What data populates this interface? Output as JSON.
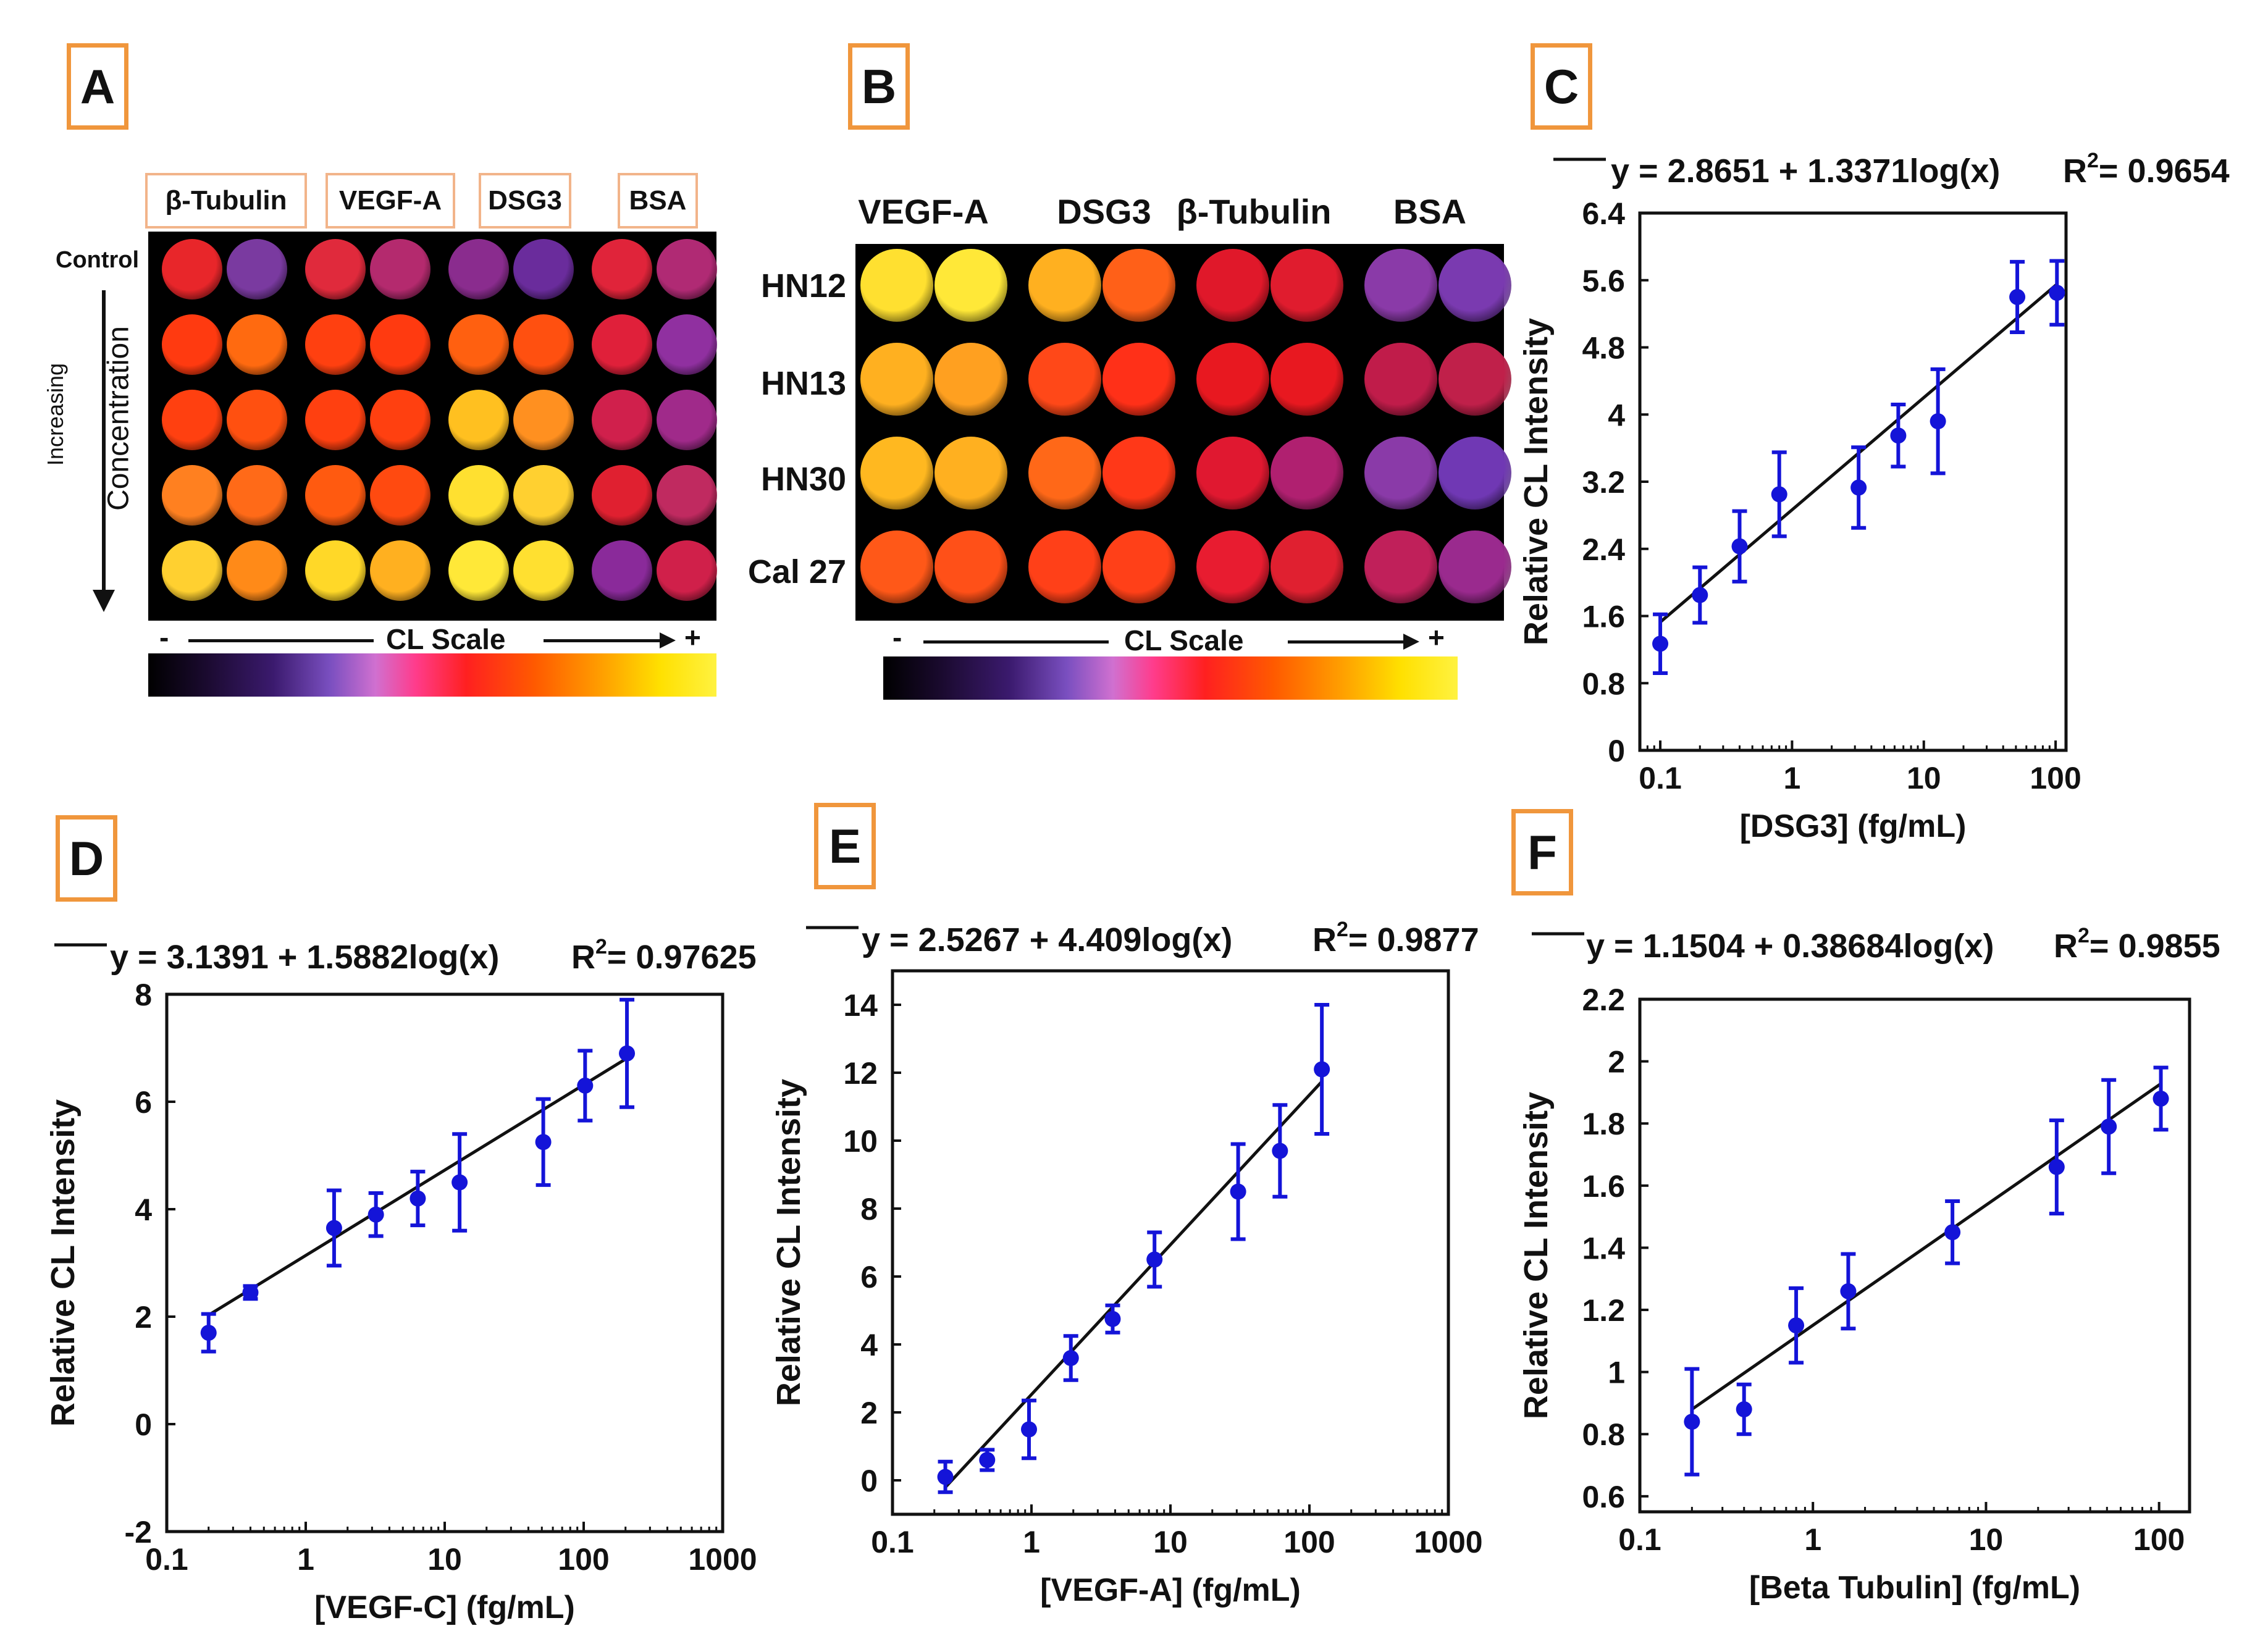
{
  "panel_labels": {
    "A": "A",
    "B": "B",
    "C": "C",
    "D": "D",
    "E": "E",
    "F": "F"
  },
  "panelA": {
    "columns": [
      "β-Tubulin",
      "VEGF-A",
      "DSG3",
      "BSA"
    ],
    "row_labels": {
      "control": "Control",
      "increasing": "Increasing",
      "concentration": "Concentration"
    },
    "scale": {
      "minus": "-",
      "label": "CL Scale",
      "plus": "+"
    },
    "wells": [
      [
        "#e8262a",
        "#7a3aa0",
        "#e02a3c",
        "#b42a6e",
        "#8a2c8e",
        "#6a2c9c",
        "#e0243a",
        "#b02a74"
      ],
      [
        "#ff3a10",
        "#ff6a10",
        "#ff4010",
        "#ff3a10",
        "#ff6010",
        "#ff5010",
        "#e0203a",
        "#9030a0"
      ],
      [
        "#ff4010",
        "#ff5010",
        "#ff4010",
        "#ff4010",
        "#ffc020",
        "#ff9020",
        "#d0204c",
        "#a02a8a"
      ],
      [
        "#ff8020",
        "#ff6a18",
        "#ff5a10",
        "#ff4a10",
        "#ffe030",
        "#ffd030",
        "#e02030",
        "#c02a60"
      ],
      [
        "#ffd030",
        "#ff8a18",
        "#ffd828",
        "#ffb020",
        "#ffe838",
        "#ffe030",
        "#8a2a9a",
        "#d0204a"
      ]
    ]
  },
  "panelB": {
    "columns": [
      "VEGF-A",
      "DSG3",
      "β-Tubulin",
      "BSA"
    ],
    "rows": [
      "HN12",
      "HN13",
      "HN30",
      "Cal 27"
    ],
    "scale": {
      "minus": "-",
      "label": "CL Scale",
      "plus": "+"
    },
    "wells": [
      [
        "#ffe030",
        "#ffe838",
        "#ffb020",
        "#ff6018",
        "#e0182a",
        "#e01c2e",
        "#8a3aa8",
        "#7a3ab0"
      ],
      [
        "#ffb020",
        "#ffa020",
        "#ff4818",
        "#ff3018",
        "#e81820",
        "#e81820",
        "#c01c4a",
        "#c0204a"
      ],
      [
        "#ffb820",
        "#ffb020",
        "#ff6818",
        "#ff3818",
        "#e01830",
        "#b02070",
        "#8a3aa8",
        "#7038b4"
      ],
      [
        "#ff5818",
        "#ff5018",
        "#ff4018",
        "#ff4018",
        "#e81c30",
        "#e02030",
        "#c0205a",
        "#9a2a8e"
      ]
    ]
  },
  "chart_data": [
    {
      "id": "C",
      "type": "scatter",
      "xscale": "log",
      "xlim": [
        0.07,
        120
      ],
      "ylim": [
        0,
        6.4
      ],
      "xticks": [
        0.1,
        1,
        10,
        100
      ],
      "xtick_labels": [
        "0.1",
        "1",
        "10",
        "100"
      ],
      "yticks": [
        0,
        0.8,
        1.6,
        2.4,
        3.2,
        4,
        4.8,
        5.6,
        6.4
      ],
      "ytick_labels": [
        "0",
        "0.8",
        "1.6",
        "2.4",
        "3.2",
        "4",
        "4.8",
        "5.6",
        "6.4"
      ],
      "xlabel": "[DSG3] (fg/mL)",
      "ylabel": "Relative CL Intensity",
      "equation": "y = 2.8651 + 1.3371log(x)",
      "r2_label": "R",
      "r2_sup": "2",
      "r2_value": "= 0.9654",
      "fit": {
        "intercept": 2.8651,
        "slope": 1.3371
      },
      "points": [
        {
          "x": 0.1,
          "y": 1.27,
          "err": 0.35
        },
        {
          "x": 0.2,
          "y": 1.85,
          "err": 0.33
        },
        {
          "x": 0.4,
          "y": 2.43,
          "err": 0.42
        },
        {
          "x": 0.8,
          "y": 3.05,
          "err": 0.5
        },
        {
          "x": 3.2,
          "y": 3.13,
          "err": 0.48
        },
        {
          "x": 6.4,
          "y": 3.75,
          "err": 0.37
        },
        {
          "x": 12.8,
          "y": 3.92,
          "err": 0.62
        },
        {
          "x": 51.2,
          "y": 5.4,
          "err": 0.42
        },
        {
          "x": 102.4,
          "y": 5.45,
          "err": 0.38
        }
      ]
    },
    {
      "id": "D",
      "type": "scatter",
      "xscale": "log",
      "xlim": [
        0.1,
        1000
      ],
      "ylim": [
        -2,
        8
      ],
      "xticks": [
        0.1,
        1,
        10,
        100,
        1000
      ],
      "xtick_labels": [
        "0.1",
        "1",
        "10",
        "100",
        "1000"
      ],
      "yticks": [
        -2,
        0,
        2,
        4,
        6,
        8
      ],
      "ytick_labels": [
        "-2",
        "0",
        "2",
        "4",
        "6",
        "8"
      ],
      "xlabel": "[VEGF-C] (fg/mL)",
      "ylabel": "Relative CL Intensity",
      "equation": "y = 3.1391 + 1.5882log(x)",
      "r2_label": "R",
      "r2_sup": "2",
      "r2_value": "= 0.97625",
      "fit": {
        "intercept": 3.1391,
        "slope": 1.5882
      },
      "points": [
        {
          "x": 0.2,
          "y": 1.7,
          "err": 0.35
        },
        {
          "x": 0.4,
          "y": 2.45,
          "err": 0.12
        },
        {
          "x": 1.6,
          "y": 3.65,
          "err": 0.7
        },
        {
          "x": 3.2,
          "y": 3.9,
          "err": 0.4
        },
        {
          "x": 6.4,
          "y": 4.2,
          "err": 0.5
        },
        {
          "x": 12.8,
          "y": 4.5,
          "err": 0.9
        },
        {
          "x": 51.2,
          "y": 5.25,
          "err": 0.8
        },
        {
          "x": 102.4,
          "y": 6.3,
          "err": 0.65
        },
        {
          "x": 204.8,
          "y": 6.9,
          "err": 1.0
        }
      ]
    },
    {
      "id": "E",
      "type": "scatter",
      "xscale": "log",
      "xlim": [
        0.1,
        1000
      ],
      "ylim": [
        -1,
        15
      ],
      "xticks": [
        0.1,
        1,
        10,
        100,
        1000
      ],
      "xtick_labels": [
        "0.1",
        "1",
        "10",
        "100",
        "1000"
      ],
      "yticks": [
        0,
        2,
        4,
        6,
        8,
        10,
        12,
        14
      ],
      "ytick_labels": [
        "0",
        "2",
        "4",
        "6",
        "8",
        "10",
        "12",
        "14"
      ],
      "xlabel": "[VEGF-A] (fg/mL)",
      "ylabel": "Relative CL Intensity",
      "equation": "y = 2.5267 + 4.409log(x)",
      "r2_label": "R",
      "r2_sup": "2",
      "r2_value": "= 0.9877",
      "fit": {
        "intercept": 2.5267,
        "slope": 4.409
      },
      "points": [
        {
          "x": 0.24,
          "y": 0.1,
          "err": 0.45
        },
        {
          "x": 0.48,
          "y": 0.6,
          "err": 0.3
        },
        {
          "x": 0.96,
          "y": 1.5,
          "err": 0.85
        },
        {
          "x": 1.92,
          "y": 3.6,
          "err": 0.65
        },
        {
          "x": 3.84,
          "y": 4.75,
          "err": 0.4
        },
        {
          "x": 7.68,
          "y": 6.5,
          "err": 0.8
        },
        {
          "x": 30.7,
          "y": 8.5,
          "err": 1.4
        },
        {
          "x": 61.4,
          "y": 9.7,
          "err": 1.35
        },
        {
          "x": 122.9,
          "y": 12.1,
          "err": 1.9
        }
      ]
    },
    {
      "id": "F",
      "type": "scatter",
      "xscale": "log",
      "xlim": [
        0.1,
        150
      ],
      "ylim": [
        0.55,
        2.2
      ],
      "xticks": [
        0.1,
        1,
        10,
        100
      ],
      "xtick_labels": [
        "0.1",
        "1",
        "10",
        "100"
      ],
      "yticks": [
        0.6,
        0.8,
        1,
        1.2,
        1.4,
        1.6,
        1.8,
        2,
        2.2
      ],
      "ytick_labels": [
        "0.6",
        "0.8",
        "1",
        "1.2",
        "1.4",
        "1.6",
        "1.8",
        "2",
        "2.2"
      ],
      "xlabel": "[Beta Tubulin] (fg/mL)",
      "ylabel": "Relative CL Intensity",
      "equation": "y = 1.1504 + 0.38684log(x)",
      "r2_label": "R",
      "r2_sup": "2",
      "r2_value": "= 0.9855",
      "fit": {
        "intercept": 1.1504,
        "slope": 0.38684
      },
      "points": [
        {
          "x": 0.2,
          "y": 0.84,
          "err": 0.17
        },
        {
          "x": 0.4,
          "y": 0.88,
          "err": 0.08
        },
        {
          "x": 0.8,
          "y": 1.15,
          "err": 0.12
        },
        {
          "x": 1.6,
          "y": 1.26,
          "err": 0.12
        },
        {
          "x": 6.4,
          "y": 1.45,
          "err": 0.1
        },
        {
          "x": 25.6,
          "y": 1.66,
          "err": 0.15
        },
        {
          "x": 51.2,
          "y": 1.79,
          "err": 0.15
        },
        {
          "x": 102.4,
          "y": 1.88,
          "err": 0.1
        }
      ]
    }
  ]
}
